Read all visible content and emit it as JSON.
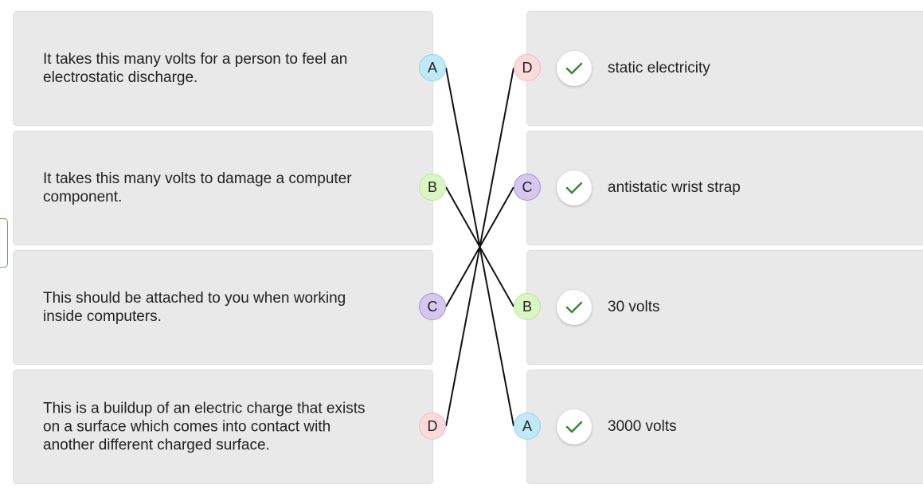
{
  "questions": [
    {
      "text": "It takes this many volts for a person to feel an electrostatic discharge.",
      "letter": "A",
      "color": "#bfe9f6",
      "ring": "#8fd3ea"
    },
    {
      "text": "It takes this many volts to damage a computer component.",
      "letter": "B",
      "color": "#d9f6c3",
      "ring": "#b9e79a"
    },
    {
      "text": "This should be attached to you when working inside computers.",
      "letter": "C",
      "color": "#d6c7ee",
      "ring": "#a98fd6"
    },
    {
      "text": "This is a buildup of an electric charge that exists on a surface which comes into contact with another different charged surface.",
      "letter": "D",
      "color": "#fadada",
      "ring": "#f2bcbc"
    }
  ],
  "answers": [
    {
      "text": "static electricity",
      "letter": "D",
      "color": "#fadada",
      "ring": "#f2bcbc",
      "icon": "checkmark-icon"
    },
    {
      "text": "antistatic wrist strap",
      "letter": "C",
      "color": "#d6c7ee",
      "ring": "#a98fd6",
      "icon": "checkmark-icon"
    },
    {
      "text": "30 volts",
      "letter": "B",
      "color": "#d9f6c3",
      "ring": "#b9e79a",
      "icon": "checkmark-icon"
    },
    {
      "text": "3000 volts",
      "letter": "A",
      "color": "#bfe9f6",
      "ring": "#8fd3ea",
      "icon": "checkmark-icon"
    }
  ],
  "colors": {
    "card": "#e9e9e9",
    "check": "#2e8b2e",
    "line": "#111111",
    "tab_border": "#6aaa45"
  }
}
